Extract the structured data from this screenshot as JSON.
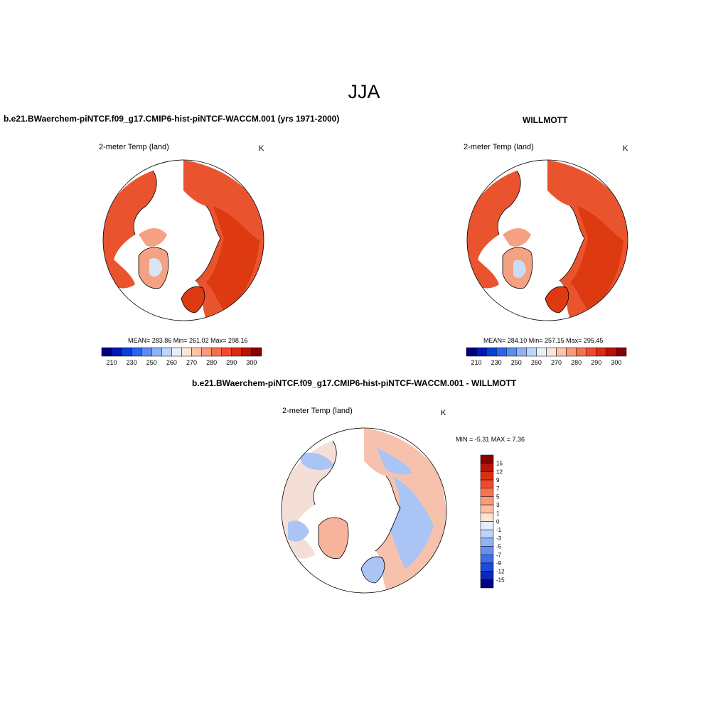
{
  "figure": {
    "title": "JJA"
  },
  "panels": [
    {
      "id": "model",
      "title": "b.e21.BWaerchem-piNTCF.f09_g17.CMIP6-hist-piNTCF-WACCM.001 (yrs 1971-2000)",
      "variable": "2-meter Temp (land)",
      "units": "K",
      "stats": "MEAN= 283.86  Min= 261.02  Max= 298.16"
    },
    {
      "id": "obs",
      "title": "WILLMOTT",
      "variable": "2-meter Temp (land)",
      "units": "K",
      "stats": "MEAN= 284.10  Min= 257.15  Max= 295.45"
    },
    {
      "id": "difference",
      "title": "b.e21.BWaerchem-piNTCF.f09_g17.CMIP6-hist-piNTCF-WACCM.001 - WILLMOTT",
      "variable": "2-meter Temp (land)",
      "units": "K",
      "stats": "MIN =  -5.31 MAX =   7.36"
    }
  ],
  "colorbars": {
    "absolute": {
      "orientation": "horizontal",
      "labels": [
        "210",
        "230",
        "250",
        "260",
        "270",
        "280",
        "290",
        "300"
      ],
      "colors": [
        "#00007f",
        "#0018b4",
        "#0a3ed8",
        "#2b62ee",
        "#5b8bf4",
        "#8db1f7",
        "#bcd5f8",
        "#e6f0fa",
        "#fde6d8",
        "#fbc4a8",
        "#f99b7b",
        "#f76f50",
        "#f24a2b",
        "#de2a13",
        "#b81308",
        "#8a0000"
      ]
    },
    "difference": {
      "orientation": "vertical",
      "labels": [
        "15",
        "12",
        "9",
        "7",
        "5",
        "3",
        "1",
        "0",
        "-1",
        "-3",
        "-5",
        "-7",
        "-9",
        "-12",
        "-15"
      ],
      "colors": [
        "#8a0000",
        "#b5160b",
        "#d9300f",
        "#f24a2b",
        "#f77350",
        "#fa9a78",
        "#fcbfa3",
        "#fde3d4",
        "#e2eefb",
        "#bdd4f7",
        "#90b3f5",
        "#6690f2",
        "#3f6ced",
        "#1f48dc",
        "#0b28b8",
        "#00007f"
      ]
    }
  },
  "colors": {
    "land_warm": "#e9542f",
    "land_hot": "#dd3a12",
    "land_cool": "#f5a183",
    "land_cold": "#f8d3c2",
    "diff_warm": "#f7b39b",
    "diff_cool": "#a9c4f5",
    "diff_neutral": "#f3dfd6"
  }
}
